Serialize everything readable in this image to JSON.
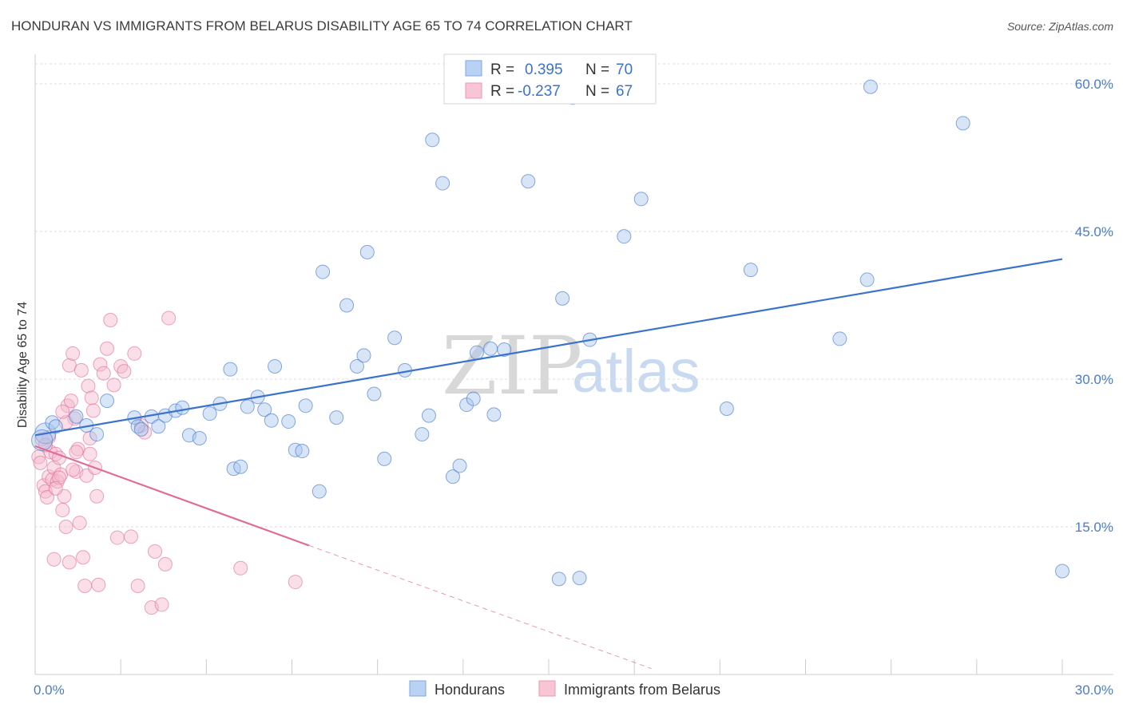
{
  "title": "HONDURAN VS IMMIGRANTS FROM BELARUS DISABILITY AGE 65 TO 74 CORRELATION CHART",
  "source": "Source: ZipAtlas.com",
  "watermark": {
    "zip": "ZIP",
    "atlas": "atlas"
  },
  "colors": {
    "blue": "#3b73cc",
    "blue_fill": "#a8c6ee",
    "pink": "#e06c96",
    "pink_fill": "#f5b8cb",
    "grid": "#dddddd",
    "tick_text": "#4a7cc8"
  },
  "legend": {
    "rows": [
      {
        "r_label": "R =",
        "r_value": "0.395",
        "n_label": "N =",
        "n_value": "70"
      },
      {
        "r_label": "R =",
        "r_value": "-0.237",
        "n_label": "N =",
        "n_value": "67"
      }
    ]
  },
  "bottom_legend": [
    "Hondurans",
    "Immigrants from Belarus"
  ],
  "chart_data": {
    "type": "scatter",
    "title": "HONDURAN VS IMMIGRANTS FROM BELARUS DISABILITY AGE 65 TO 74 CORRELATION CHART",
    "xlabel": "",
    "ylabel": "Disability Age 65 to 74",
    "xlim": [
      0,
      30
    ],
    "ylim": [
      0,
      63
    ],
    "x_tick_labels": [
      "0.0%",
      "30.0%"
    ],
    "y_ticks": [
      15,
      30,
      45,
      60
    ],
    "y_tick_labels": [
      "15.0%",
      "30.0%",
      "45.0%",
      "60.0%"
    ],
    "grid": true,
    "legend_placement": "top-center",
    "series": [
      {
        "name": "Hondurans",
        "color": "#3b73cc",
        "r": 0.395,
        "n": 70,
        "trend": {
          "x": [
            0,
            30
          ],
          "y": [
            24.3,
            42.2
          ]
        },
        "points": [
          [
            0.3,
            24.5
          ],
          [
            0.5,
            25.6
          ],
          [
            0.6,
            25.2
          ],
          [
            1.2,
            26.2
          ],
          [
            1.5,
            25.3
          ],
          [
            1.8,
            24.4
          ],
          [
            2.1,
            27.8
          ],
          [
            2.9,
            26.1
          ],
          [
            3.0,
            25.2
          ],
          [
            3.4,
            26.2
          ],
          [
            3.6,
            25.2
          ],
          [
            3.8,
            26.3
          ],
          [
            4.1,
            26.8
          ],
          [
            4.3,
            27.1
          ],
          [
            4.5,
            24.3
          ],
          [
            4.8,
            24.0
          ],
          [
            5.1,
            26.5
          ],
          [
            5.4,
            27.5
          ],
          [
            5.7,
            31.0
          ],
          [
            5.8,
            20.9
          ],
          [
            6.0,
            21.1
          ],
          [
            6.5,
            28.2
          ],
          [
            6.7,
            26.9
          ],
          [
            6.9,
            25.8
          ],
          [
            7.0,
            31.3
          ],
          [
            7.4,
            25.7
          ],
          [
            7.6,
            22.8
          ],
          [
            7.8,
            22.7
          ],
          [
            7.9,
            27.3
          ],
          [
            8.3,
            18.6
          ],
          [
            8.4,
            40.9
          ],
          [
            8.8,
            26.1
          ],
          [
            9.1,
            37.5
          ],
          [
            9.4,
            31.3
          ],
          [
            9.6,
            32.4
          ],
          [
            9.7,
            42.9
          ],
          [
            10.2,
            21.9
          ],
          [
            10.5,
            34.2
          ],
          [
            10.8,
            30.9
          ],
          [
            11.3,
            24.4
          ],
          [
            11.5,
            26.3
          ],
          [
            11.6,
            54.3
          ],
          [
            11.9,
            49.9
          ],
          [
            12.2,
            20.1
          ],
          [
            12.4,
            21.2
          ],
          [
            12.6,
            27.4
          ],
          [
            12.8,
            28.0
          ],
          [
            12.9,
            32.7
          ],
          [
            13.3,
            33.1
          ],
          [
            13.4,
            26.4
          ],
          [
            13.7,
            33.0
          ],
          [
            14.4,
            50.1
          ],
          [
            15.3,
            9.7
          ],
          [
            15.4,
            38.2
          ],
          [
            15.7,
            58.6
          ],
          [
            15.9,
            9.8
          ],
          [
            16.2,
            34.0
          ],
          [
            17.2,
            44.5
          ],
          [
            17.7,
            48.3
          ],
          [
            20.2,
            27.0
          ],
          [
            20.9,
            41.1
          ],
          [
            23.5,
            34.1
          ],
          [
            24.3,
            40.1
          ],
          [
            24.4,
            59.7
          ],
          [
            27.1,
            56.0
          ],
          [
            30.0,
            10.5
          ],
          [
            0.2,
            23.8
          ],
          [
            3.1,
            24.9
          ],
          [
            6.2,
            27.2
          ],
          [
            9.9,
            28.5
          ]
        ]
      },
      {
        "name": "Immigrants from Belarus",
        "color": "#e06c96",
        "r": -0.237,
        "n": 67,
        "trend": {
          "x": [
            0,
            8
          ],
          "y": [
            23.2,
            13.1
          ]
        },
        "trend_dashed": {
          "x": [
            8,
            18
          ],
          "y": [
            13.1,
            0.6
          ]
        },
        "points": [
          [
            0.1,
            22.1
          ],
          [
            0.15,
            21.5
          ],
          [
            0.2,
            23.9
          ],
          [
            0.25,
            19.2
          ],
          [
            0.3,
            18.6
          ],
          [
            0.35,
            18.0
          ],
          [
            0.4,
            20.1
          ],
          [
            0.45,
            22.6
          ],
          [
            0.5,
            19.8
          ],
          [
            0.55,
            21.0
          ],
          [
            0.6,
            22.4
          ],
          [
            0.65,
            19.6
          ],
          [
            0.7,
            22.0
          ],
          [
            0.75,
            20.3
          ],
          [
            0.8,
            16.7
          ],
          [
            0.85,
            18.1
          ],
          [
            0.9,
            15.0
          ],
          [
            0.95,
            27.3
          ],
          [
            1.0,
            31.4
          ],
          [
            1.05,
            27.8
          ],
          [
            1.1,
            32.6
          ],
          [
            1.15,
            26.0
          ],
          [
            1.2,
            20.6
          ],
          [
            1.25,
            22.9
          ],
          [
            1.3,
            15.4
          ],
          [
            1.35,
            30.9
          ],
          [
            1.4,
            11.9
          ],
          [
            1.45,
            9.0
          ],
          [
            1.5,
            20.2
          ],
          [
            1.55,
            29.3
          ],
          [
            1.6,
            22.4
          ],
          [
            1.65,
            28.1
          ],
          [
            1.7,
            26.8
          ],
          [
            1.75,
            21.0
          ],
          [
            1.8,
            18.1
          ],
          [
            1.85,
            9.1
          ],
          [
            1.9,
            31.5
          ],
          [
            2.0,
            30.6
          ],
          [
            2.1,
            33.1
          ],
          [
            2.2,
            36.0
          ],
          [
            2.3,
            29.4
          ],
          [
            2.4,
            13.9
          ],
          [
            2.5,
            31.3
          ],
          [
            2.6,
            30.8
          ],
          [
            2.8,
            14.0
          ],
          [
            2.9,
            32.6
          ],
          [
            3.0,
            9.0
          ],
          [
            3.1,
            25.3
          ],
          [
            3.2,
            24.6
          ],
          [
            3.4,
            6.8
          ],
          [
            3.5,
            12.5
          ],
          [
            3.7,
            7.1
          ],
          [
            3.8,
            11.2
          ],
          [
            3.9,
            36.2
          ],
          [
            6.0,
            10.8
          ],
          [
            7.6,
            9.4
          ],
          [
            0.55,
            11.7
          ],
          [
            1.0,
            11.4
          ],
          [
            0.7,
            20.0
          ],
          [
            0.4,
            24.1
          ],
          [
            0.9,
            25.6
          ],
          [
            1.2,
            22.6
          ],
          [
            0.6,
            18.9
          ],
          [
            1.1,
            20.8
          ],
          [
            1.6,
            24.0
          ],
          [
            0.3,
            23.3
          ],
          [
            0.8,
            26.7
          ]
        ]
      }
    ]
  }
}
